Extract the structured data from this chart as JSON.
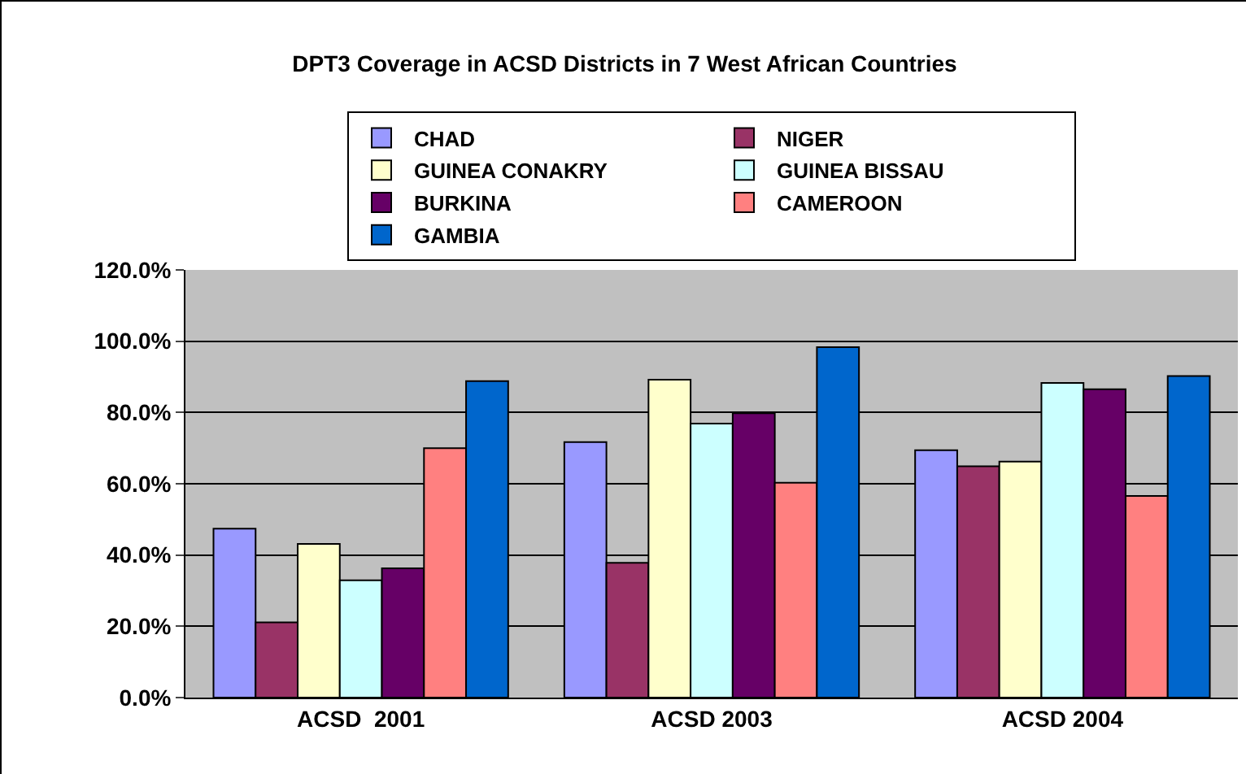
{
  "chart_data": {
    "type": "bar",
    "title": "DPT3 Coverage in ACSD Districts in 7 West African Countries",
    "categories": [
      "ACSD  2001",
      "ACSD 2003",
      "ACSD 2004"
    ],
    "series": [
      {
        "name": "CHAD",
        "color": "#9999ff",
        "values": [
          47.4,
          71.7,
          69.4
        ]
      },
      {
        "name": "NIGER",
        "color": "#993366",
        "values": [
          21.1,
          37.8,
          64.9
        ]
      },
      {
        "name": "GUINEA CONAKRY",
        "color": "#ffffcc",
        "values": [
          43.1,
          89.2,
          66.2
        ]
      },
      {
        "name": "GUINEA BISSAU",
        "color": "#ccffff",
        "values": [
          32.9,
          76.9,
          88.3
        ]
      },
      {
        "name": "BURKINA",
        "color": "#660066",
        "values": [
          36.3,
          79.8,
          86.5
        ]
      },
      {
        "name": "CAMEROON",
        "color": "#ff8080",
        "values": [
          70.0,
          60.3,
          56.6
        ]
      },
      {
        "name": "GAMBIA",
        "color": "#0066cc",
        "values": [
          88.8,
          98.3,
          90.2
        ]
      }
    ],
    "ylim": [
      0,
      120
    ],
    "yticks": [
      {
        "value": 0,
        "label": "0.0%"
      },
      {
        "value": 20,
        "label": "20.0%"
      },
      {
        "value": 40,
        "label": "40.0%"
      },
      {
        "value": 60,
        "label": "60.0%"
      },
      {
        "value": 80,
        "label": "80.0%"
      },
      {
        "value": 100,
        "label": "100.0%"
      },
      {
        "value": 120,
        "label": "120.0%"
      }
    ],
    "grid": "y",
    "legend": "top"
  }
}
